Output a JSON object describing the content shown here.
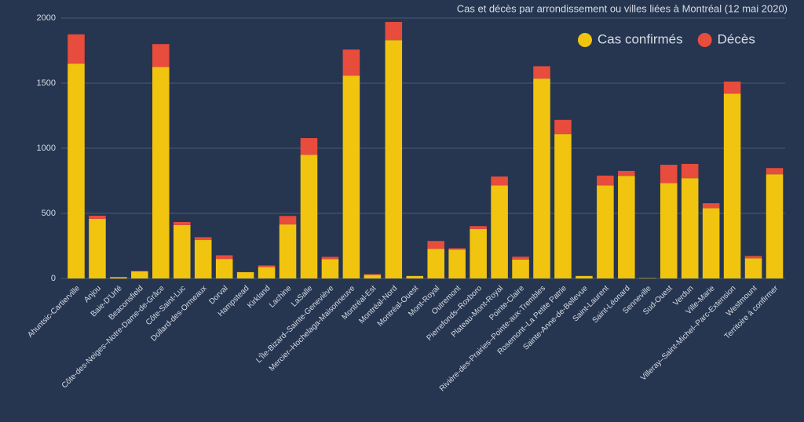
{
  "chart_data": {
    "type": "stacked_bar",
    "title": "Cas et décès par arrondissement ou villes liées à Montréal (12 mai 2020)",
    "categories": [
      "Ahuntsic-Cartierville",
      "Anjou",
      "Baie-D'Urfé",
      "Beaconsfield",
      "Côte-des-Neiges–Notre-Dame-de-Grâce",
      "Côte-Saint-Luc",
      "Dollard-des-Ormeaux",
      "Dorval",
      "Hampstead",
      "Kirkland",
      "Lachine",
      "LaSalle",
      "L'Île-Bizard–Sainte-Geneviève",
      "Mercier–Hochelaga-Maisonneuve",
      "Montréal-Est",
      "Montréal-Nord",
      "Montréal-Ouest",
      "Mont-Royal",
      "Outremont",
      "Pierrefonds–Roxboro",
      "Plateau-Mont-Royal",
      "Pointe-Claire",
      "Rivière-des-Prairies–Pointe-aux-Trembles",
      "Rosemont–La Petite Patrie",
      "Sainte-Anne-de-Bellevue",
      "Saint-Laurent",
      "Saint-Léonard",
      "Senneville",
      "Sud-Ouest",
      "Verdun",
      "Ville-Marie",
      "Villeray–Saint-Michel–Parc-Extension",
      "Westmount",
      "Territoire à confirmer"
    ],
    "series": [
      {
        "name": "Cas confirmés",
        "color": "#f1c40f",
        "values": [
          1650,
          458,
          10,
          55,
          1625,
          410,
          295,
          150,
          48,
          88,
          415,
          950,
          148,
          1558,
          28,
          1830,
          18,
          228,
          222,
          380,
          715,
          145,
          1535,
          1108,
          18,
          715,
          788,
          3,
          733,
          770,
          540,
          1420,
          155,
          800
        ]
      },
      {
        "name": "Décès",
        "color": "#e74c3c",
        "values": [
          225,
          24,
          0,
          2,
          175,
          24,
          22,
          28,
          1,
          12,
          65,
          128,
          18,
          200,
          5,
          140,
          2,
          60,
          10,
          22,
          68,
          22,
          95,
          110,
          2,
          75,
          38,
          0,
          140,
          110,
          38,
          92,
          18,
          48
        ]
      }
    ],
    "ylim": [
      0,
      2000
    ],
    "yticks": [
      0,
      500,
      1000,
      1500,
      2000
    ],
    "grid": true,
    "legend": "top-right"
  }
}
